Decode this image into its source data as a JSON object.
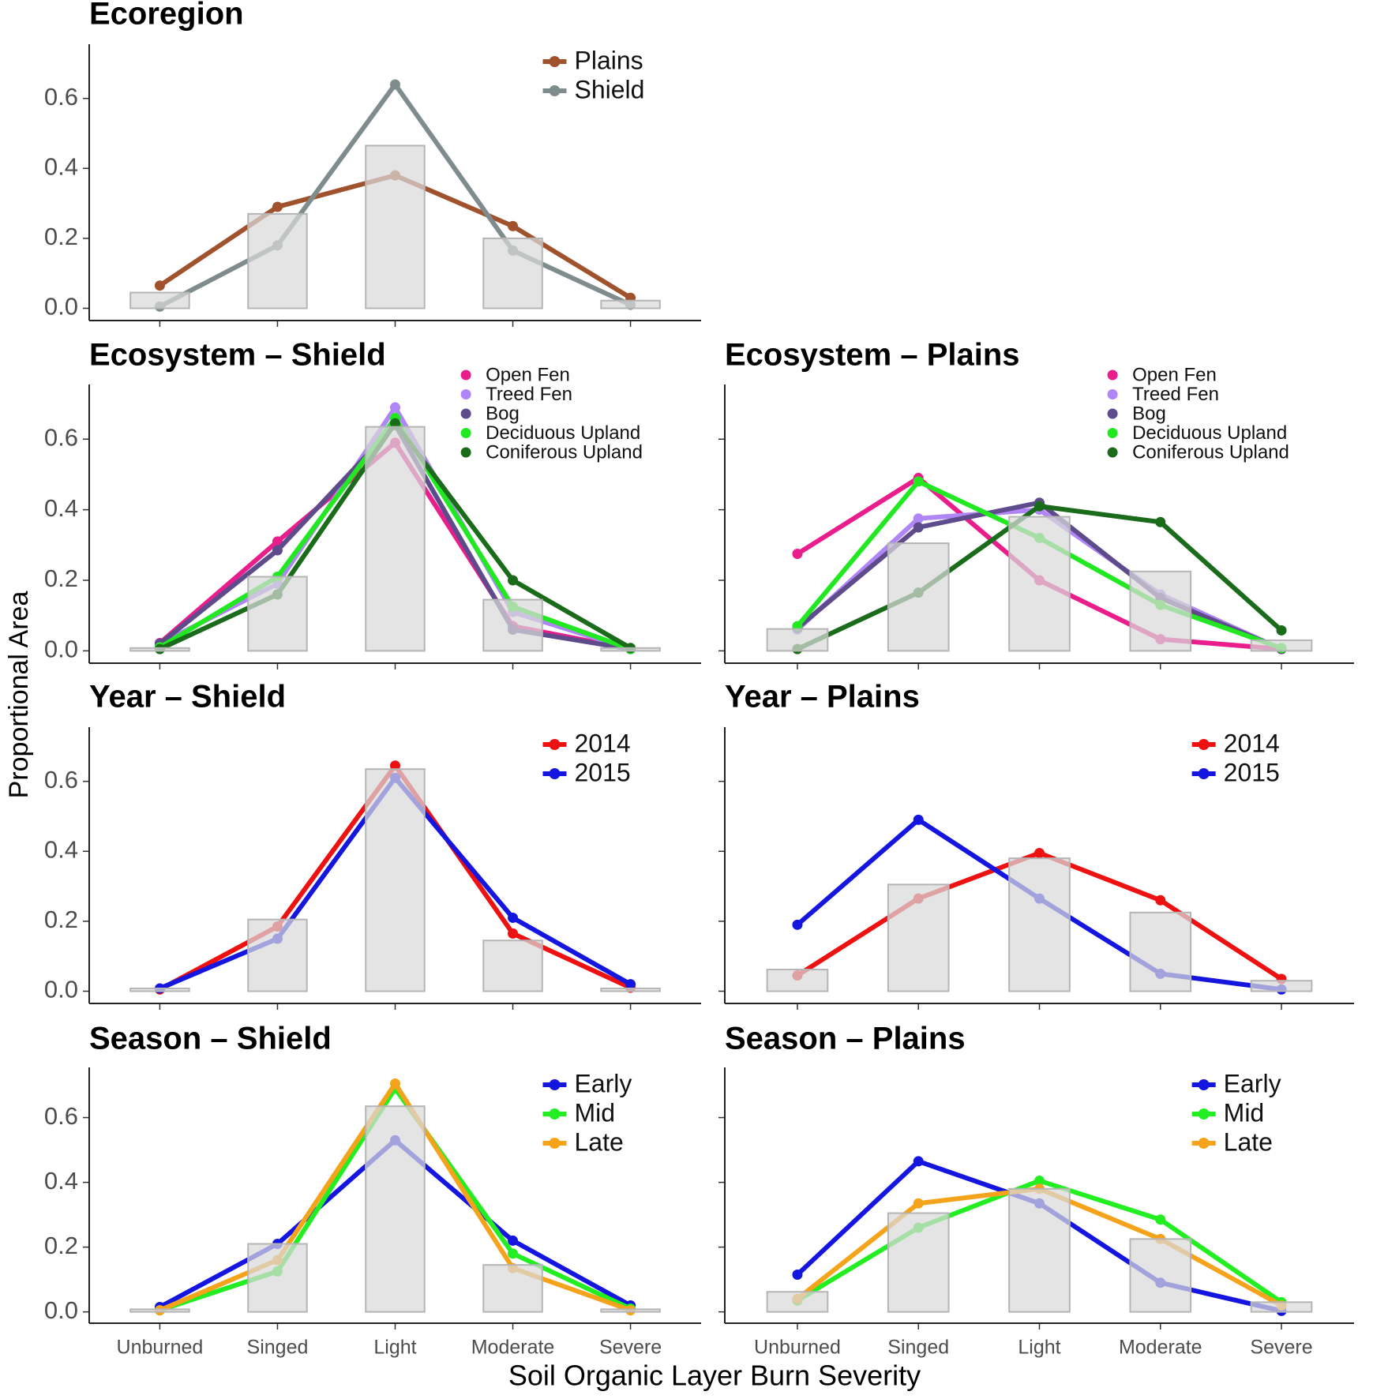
{
  "xlabel": "Soil Organic Layer Burn Severity",
  "ylabel": "Proportional Area",
  "categories": [
    "Unburned",
    "Singed",
    "Light",
    "Moderate",
    "Severe"
  ],
  "chart_data": [
    {
      "type": "line",
      "title": "Ecoregion",
      "ylim": [
        -0.035,
        0.755
      ],
      "yticks": [
        {
          "value": 0,
          "label": "0.0"
        },
        0.2,
        0.4,
        0.6
      ],
      "bars": {
        "color": "#d9d9d9",
        "values": [
          0.045,
          0.27,
          0.465,
          0.2,
          0.022
        ]
      },
      "series": [
        {
          "name": "Plains",
          "color": "#a0522d",
          "values": [
            0.065,
            0.29,
            0.38,
            0.235,
            0.03
          ]
        },
        {
          "name": "Shield",
          "color": "#7f8c8d",
          "values": [
            0.005,
            0.18,
            0.64,
            0.165,
            0.01
          ]
        }
      ]
    },
    {
      "type": "line",
      "title": "Ecosystem – Shield",
      "ylim": [
        -0.035,
        0.755
      ],
      "yticks": [
        {
          "value": 0,
          "label": "0.0"
        },
        0.2,
        0.4,
        0.6
      ],
      "bars": {
        "color": "#d9d9d9",
        "values": [
          0.008,
          0.21,
          0.635,
          0.145,
          0.008
        ]
      },
      "series": [
        {
          "name": "Open Fen",
          "color": "#e91e8c",
          "values": [
            0.022,
            0.31,
            0.59,
            0.07,
            0.005
          ]
        },
        {
          "name": "Treed Fen",
          "color": "#b085f5",
          "values": [
            0.02,
            0.19,
            0.69,
            0.11,
            0.005
          ]
        },
        {
          "name": "Bog",
          "color": "#5e4b8b",
          "values": [
            0.02,
            0.285,
            0.64,
            0.06,
            0.005
          ]
        },
        {
          "name": "Deciduous Upland",
          "color": "#22e822",
          "values": [
            0.01,
            0.21,
            0.66,
            0.125,
            0.005
          ]
        },
        {
          "name": "Coniferous Upland",
          "color": "#1a6b1a",
          "values": [
            0.005,
            0.16,
            0.645,
            0.2,
            0.008
          ]
        }
      ]
    },
    {
      "type": "line",
      "title": "Ecosystem – Plains",
      "ylim": [
        -0.035,
        0.755
      ],
      "yticks": [
        0,
        0.2,
        0.4,
        0.6
      ],
      "bars": {
        "color": "#d9d9d9",
        "values": [
          0.062,
          0.305,
          0.38,
          0.225,
          0.03
        ]
      },
      "series": [
        {
          "name": "Open Fen",
          "color": "#e91e8c",
          "values": [
            0.275,
            0.49,
            0.2,
            0.033,
            0.005
          ]
        },
        {
          "name": "Treed Fen",
          "color": "#b085f5",
          "values": [
            0.06,
            0.375,
            0.4,
            0.16,
            0.005
          ]
        },
        {
          "name": "Bog",
          "color": "#5e4b8b",
          "values": [
            0.065,
            0.35,
            0.42,
            0.15,
            0.005
          ]
        },
        {
          "name": "Deciduous Upland",
          "color": "#22e822",
          "values": [
            0.07,
            0.48,
            0.32,
            0.13,
            0.008
          ]
        },
        {
          "name": "Coniferous Upland",
          "color": "#1a6b1a",
          "values": [
            0.005,
            0.165,
            0.41,
            0.365,
            0.058
          ]
        }
      ]
    },
    {
      "type": "line",
      "title": "Year – Shield",
      "ylim": [
        -0.035,
        0.755
      ],
      "yticks": [
        {
          "value": 0,
          "label": "0.0"
        },
        0.2,
        0.4,
        0.6
      ],
      "bars": {
        "color": "#d9d9d9",
        "values": [
          0.008,
          0.205,
          0.635,
          0.145,
          0.008
        ]
      },
      "series": [
        {
          "name": "2014",
          "color": "#ee1111",
          "values": [
            0.005,
            0.185,
            0.645,
            0.165,
            0.01
          ]
        },
        {
          "name": "2015",
          "color": "#1515e0",
          "values": [
            0.008,
            0.15,
            0.61,
            0.21,
            0.02
          ]
        }
      ]
    },
    {
      "type": "line",
      "title": "Year – Plains",
      "ylim": [
        -0.035,
        0.755
      ],
      "yticks": [
        0,
        0.2,
        0.4,
        0.6
      ],
      "bars": {
        "color": "#d9d9d9",
        "values": [
          0.062,
          0.305,
          0.38,
          0.225,
          0.03
        ]
      },
      "series": [
        {
          "name": "2014",
          "color": "#ee1111",
          "values": [
            0.045,
            0.265,
            0.395,
            0.26,
            0.035
          ]
        },
        {
          "name": "2015",
          "color": "#1515e0",
          "values": [
            0.19,
            0.49,
            0.265,
            0.05,
            0.005
          ]
        }
      ]
    },
    {
      "type": "line",
      "title": "Season – Shield",
      "ylim": [
        -0.035,
        0.755
      ],
      "yticks": [
        {
          "value": 0,
          "label": "0.0"
        },
        0.2,
        0.4,
        0.6
      ],
      "bars": {
        "color": "#d9d9d9",
        "values": [
          0.008,
          0.21,
          0.635,
          0.145,
          0.008
        ]
      },
      "series": [
        {
          "name": "Early",
          "color": "#1515e0",
          "values": [
            0.015,
            0.21,
            0.53,
            0.22,
            0.02
          ]
        },
        {
          "name": "Mid",
          "color": "#22ee22",
          "values": [
            0.005,
            0.125,
            0.69,
            0.18,
            0.01
          ]
        },
        {
          "name": "Late",
          "color": "#f5a31a",
          "values": [
            0.005,
            0.16,
            0.705,
            0.135,
            0.005
          ]
        }
      ]
    },
    {
      "type": "line",
      "title": "Season – Plains",
      "ylim": [
        -0.035,
        0.755
      ],
      "yticks": [
        0,
        0.2,
        0.4,
        0.6
      ],
      "bars": {
        "color": "#d9d9d9",
        "values": [
          0.062,
          0.305,
          0.38,
          0.225,
          0.03
        ]
      },
      "series": [
        {
          "name": "Early",
          "color": "#1515e0",
          "values": [
            0.115,
            0.465,
            0.335,
            0.09,
            0.003
          ]
        },
        {
          "name": "Mid",
          "color": "#22ee22",
          "values": [
            0.035,
            0.26,
            0.405,
            0.285,
            0.03
          ]
        },
        {
          "name": "Late",
          "color": "#f5a31a",
          "values": [
            0.04,
            0.335,
            0.38,
            0.225,
            0.02
          ]
        }
      ]
    }
  ]
}
